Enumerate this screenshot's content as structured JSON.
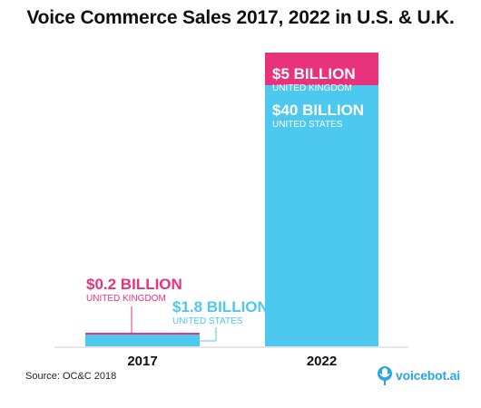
{
  "chart_data": {
    "type": "bar",
    "stacked": true,
    "title": "Voice Commerce Sales 2017, 2022 in U.S. & U.K.",
    "categories": [
      "2017",
      "2022"
    ],
    "unit": "billion USD",
    "ylim": [
      0,
      45
    ],
    "series": [
      {
        "name": "UNITED STATES",
        "color": "#4dc8ee",
        "values": [
          1.8,
          40
        ],
        "labels": [
          "$1.8 BILLION",
          "$40 BILLION"
        ]
      },
      {
        "name": "UNITED KINGDOM",
        "color": "#e8327c",
        "values": [
          0.2,
          5
        ],
        "labels": [
          "$0.2 BILLION",
          "$5 BILLION"
        ]
      }
    ]
  },
  "source": "Source: OC&C 2018",
  "brand": {
    "name": "voicebot.ai",
    "icon": "voicebot-logo-icon",
    "color": "#2aa7df"
  }
}
